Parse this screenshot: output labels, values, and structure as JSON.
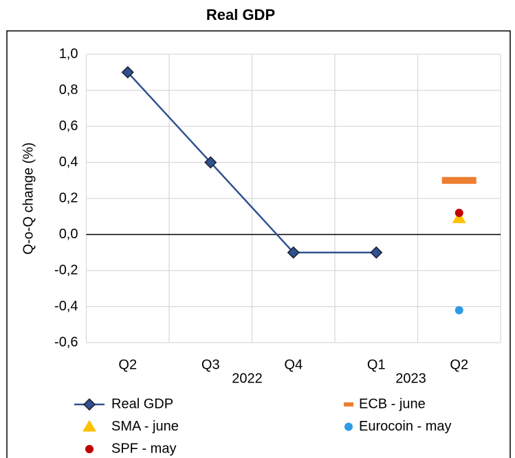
{
  "chart_data": {
    "type": "line",
    "title": "Real GDP",
    "y_label": "Q-o-Q change (%)",
    "categories": [
      "Q2",
      "Q3",
      "Q4",
      "Q1",
      "Q2"
    ],
    "annotations": [
      "2022",
      "2023"
    ],
    "ylim": [
      -0.6,
      1.0
    ],
    "yticks": [
      {
        "value": -0.6,
        "label": "-0,6"
      },
      {
        "value": -0.4,
        "label": "-0,4"
      },
      {
        "value": -0.2,
        "label": "-0,2"
      },
      {
        "value": 0.0,
        "label": "0,0"
      },
      {
        "value": 0.2,
        "label": "0,2"
      },
      {
        "value": 0.4,
        "label": "0,4"
      },
      {
        "value": 0.6,
        "label": "0,6"
      },
      {
        "value": 0.8,
        "label": "0,8"
      },
      {
        "value": 1.0,
        "label": "1,0"
      }
    ],
    "grid": true,
    "series": [
      {
        "name": "Real GDP",
        "color": "#2f528f",
        "marker": "diamond",
        "line": true,
        "values": [
          0.9,
          0.4,
          -0.1,
          -0.1,
          null
        ]
      },
      {
        "name": "ECB - june",
        "color": "#ed7d31",
        "marker": "dash",
        "line": false,
        "values": [
          null,
          null,
          null,
          null,
          0.3
        ]
      },
      {
        "name": "SMA - june",
        "color": "#ffc000",
        "marker": "triangle",
        "line": false,
        "values": [
          null,
          null,
          null,
          null,
          0.09
        ]
      },
      {
        "name": "Eurocoin - may",
        "color": "#2e9be6",
        "marker": "circle",
        "line": false,
        "values": [
          null,
          null,
          null,
          null,
          -0.42
        ]
      },
      {
        "name": "SPF - may",
        "color": "#c00000",
        "marker": "circle",
        "line": false,
        "values": [
          null,
          null,
          null,
          null,
          0.12
        ]
      }
    ]
  }
}
